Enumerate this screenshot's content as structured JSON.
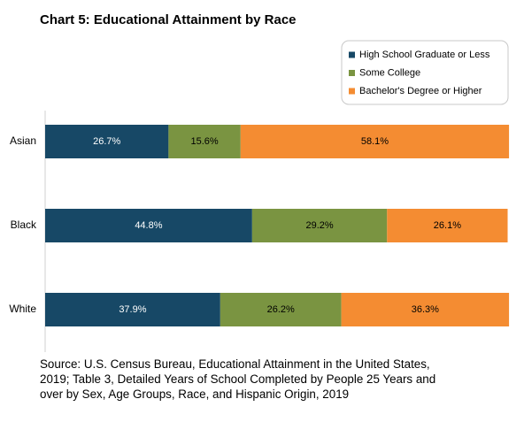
{
  "chart_data": {
    "type": "stacked-barh",
    "title": "Chart 5: Educational Attainment by Race",
    "categories": [
      "Asian",
      "Black",
      "White"
    ],
    "series": [
      {
        "name": "High School Graduate or Less",
        "color": "#174866",
        "values": [
          26.7,
          44.8,
          37.9
        ],
        "value_labels": [
          "26.7%",
          "44.8%",
          "37.9%"
        ]
      },
      {
        "name": "Some College",
        "color": "#7a9441",
        "values": [
          15.6,
          29.2,
          26.2
        ],
        "value_labels": [
          "15.6%",
          "29.2%",
          "26.2%"
        ]
      },
      {
        "name": "Bachelor's Degree or Higher",
        "color": "#f48c32",
        "values": [
          58.1,
          26.1,
          36.3
        ],
        "value_labels": [
          "58.1%",
          "26.1%",
          "36.3%"
        ]
      }
    ],
    "xlim": [
      0,
      100
    ],
    "legend": "upper-right",
    "source": "Source: U.S. Census Bureau, Educational Attainment in the United States, 2019; Table 3, Detailed Years of School Completed by People 25 Years and over by Sex, Age Groups, Race, and Hispanic Origin, 2019"
  }
}
